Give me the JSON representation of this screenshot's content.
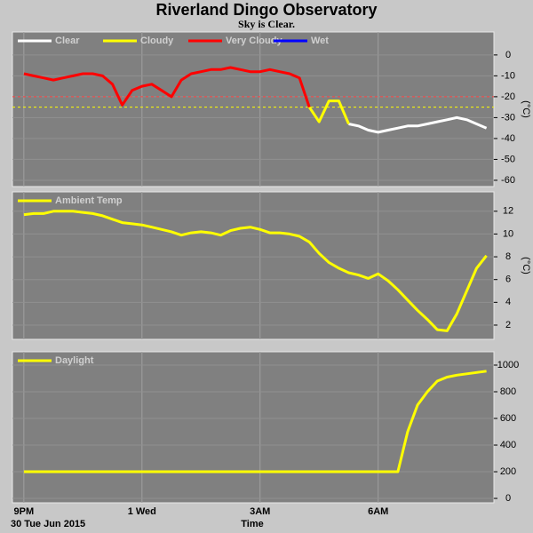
{
  "title": "Riverland Dingo Observatory",
  "subtitle": "Sky is Clear.",
  "x_axis": {
    "label": "Time",
    "date": "30 Tue Jun 2015",
    "xlim": [
      -0.29,
      11.94
    ],
    "xticks": [
      {
        "value": 0,
        "label": "9PM"
      },
      {
        "value": 3,
        "label": "1 Wed"
      },
      {
        "value": 6,
        "label": "3AM"
      },
      {
        "value": 9,
        "label": "6AM"
      }
    ]
  },
  "chart_data": [
    {
      "type": "line",
      "unit": "(°C)",
      "ylim": [
        -63,
        11
      ],
      "yticks": [
        0,
        -10,
        -20,
        -30,
        -40,
        -50,
        -60
      ],
      "grid": true,
      "thresholds": [
        {
          "value": -20,
          "color": "#ff4040"
        },
        {
          "value": -25,
          "color": "#ffff00"
        }
      ],
      "x": [
        0,
        0.25,
        0.5,
        0.75,
        1,
        1.25,
        1.5,
        1.75,
        2,
        2.25,
        2.5,
        2.75,
        3,
        3.25,
        3.5,
        3.75,
        4,
        4.25,
        4.5,
        4.75,
        5,
        5.25,
        5.5,
        5.75,
        6,
        6.25,
        6.5,
        6.75,
        7,
        7.25,
        7.5,
        7.75,
        8,
        8.25,
        8.5,
        8.75,
        9,
        9.25,
        9.5,
        9.75,
        10,
        10.25,
        10.5,
        10.75,
        11,
        11.25,
        11.5,
        11.75
      ],
      "series": [
        {
          "name": "Clear",
          "color": "#ffffff",
          "values": [
            null,
            null,
            null,
            null,
            null,
            null,
            null,
            null,
            null,
            null,
            null,
            null,
            null,
            null,
            null,
            null,
            null,
            null,
            null,
            null,
            null,
            null,
            null,
            null,
            null,
            null,
            null,
            null,
            null,
            null,
            null,
            null,
            null,
            -33,
            -34,
            -36,
            -37,
            -36,
            -35,
            -34,
            -34,
            -33,
            -32,
            -31,
            -30,
            -31,
            -33,
            -35
          ]
        },
        {
          "name": "Cloudy",
          "color": "#ffff00",
          "values": [
            null,
            null,
            null,
            null,
            null,
            null,
            null,
            null,
            null,
            null,
            null,
            null,
            null,
            null,
            null,
            null,
            null,
            null,
            null,
            null,
            null,
            null,
            null,
            null,
            null,
            null,
            null,
            null,
            null,
            -25,
            -32,
            -22,
            -22,
            -33,
            null,
            null,
            null,
            null,
            null,
            null,
            null,
            null,
            null,
            null,
            null,
            null,
            null,
            null
          ]
        },
        {
          "name": "Very Cloudy",
          "color": "#ff0000",
          "values": [
            -9,
            -10,
            -11,
            -12,
            -11,
            -10,
            -9,
            -9,
            -10,
            -14,
            -24,
            -17,
            -15,
            -14,
            -17,
            -20,
            -12,
            -9,
            -8,
            -7,
            -7,
            -6,
            -7,
            -8,
            -8,
            -7,
            -8,
            -9,
            -11,
            -25,
            null,
            null,
            null,
            null,
            null,
            null,
            null,
            null,
            null,
            null,
            null,
            null,
            null,
            null,
            null,
            null,
            null,
            null
          ]
        },
        {
          "name": "Wet",
          "color": "#0000ff",
          "values": [
            null,
            null,
            null,
            null,
            null,
            null,
            null,
            null,
            null,
            null,
            null,
            null,
            null,
            null,
            null,
            null,
            null,
            null,
            null,
            null,
            null,
            null,
            null,
            null,
            null,
            null,
            null,
            null,
            null,
            null,
            null,
            null,
            null,
            null,
            null,
            null,
            null,
            null,
            null,
            null,
            null,
            null,
            null,
            null,
            null,
            null,
            null,
            null
          ]
        }
      ]
    },
    {
      "type": "line",
      "unit": "(°C)",
      "ylim": [
        0.75,
        13.7
      ],
      "yticks": [
        2,
        4,
        6,
        8,
        10,
        12
      ],
      "grid": true,
      "x": [
        0,
        0.25,
        0.5,
        0.75,
        1,
        1.25,
        1.5,
        1.75,
        2,
        2.25,
        2.5,
        2.75,
        3,
        3.25,
        3.5,
        3.75,
        4,
        4.25,
        4.5,
        4.75,
        5,
        5.25,
        5.5,
        5.75,
        6,
        6.25,
        6.5,
        6.75,
        7,
        7.25,
        7.5,
        7.75,
        8,
        8.25,
        8.5,
        8.75,
        9,
        9.25,
        9.5,
        9.75,
        10,
        10.25,
        10.5,
        10.75,
        11,
        11.25,
        11.5,
        11.75
      ],
      "series": [
        {
          "name": "Ambient Temp",
          "color": "#ffff00",
          "values": [
            11.7,
            11.8,
            11.8,
            12,
            12,
            12,
            11.9,
            11.8,
            11.6,
            11.3,
            11,
            10.9,
            10.8,
            10.6,
            10.4,
            10.2,
            9.9,
            10.1,
            10.2,
            10.1,
            9.9,
            10.3,
            10.5,
            10.6,
            10.4,
            10.1,
            10.1,
            10,
            9.8,
            9.3,
            8.3,
            7.5,
            7,
            6.6,
            6.4,
            6.1,
            6.5,
            5.9,
            5.1,
            4.2,
            3.3,
            2.5,
            1.6,
            1.5,
            3,
            5,
            7,
            8.1
          ]
        }
      ]
    },
    {
      "type": "line",
      "ylim": [
        -33,
        1100
      ],
      "yticks": [
        0,
        200,
        400,
        600,
        800,
        1000
      ],
      "grid": true,
      "x": [
        0,
        0.25,
        0.5,
        0.75,
        1,
        1.25,
        1.5,
        1.75,
        2,
        2.25,
        2.5,
        2.75,
        3,
        3.25,
        3.5,
        3.75,
        4,
        4.25,
        4.5,
        4.75,
        5,
        5.25,
        5.5,
        5.75,
        6,
        6.25,
        6.5,
        6.75,
        7,
        7.25,
        7.5,
        7.75,
        8,
        8.25,
        8.5,
        8.75,
        9,
        9.25,
        9.5,
        9.75,
        10,
        10.25,
        10.5,
        10.75,
        11,
        11.25,
        11.5,
        11.75
      ],
      "series": [
        {
          "name": "Daylight",
          "color": "#ffff00",
          "values": [
            200,
            200,
            200,
            200,
            200,
            200,
            200,
            200,
            200,
            200,
            200,
            200,
            200,
            200,
            200,
            200,
            200,
            200,
            200,
            200,
            200,
            200,
            200,
            200,
            200,
            200,
            200,
            200,
            200,
            200,
            200,
            200,
            200,
            200,
            200,
            200,
            200,
            200,
            200,
            500,
            700,
            800,
            880,
            910,
            925,
            935,
            945,
            955
          ]
        }
      ]
    }
  ]
}
